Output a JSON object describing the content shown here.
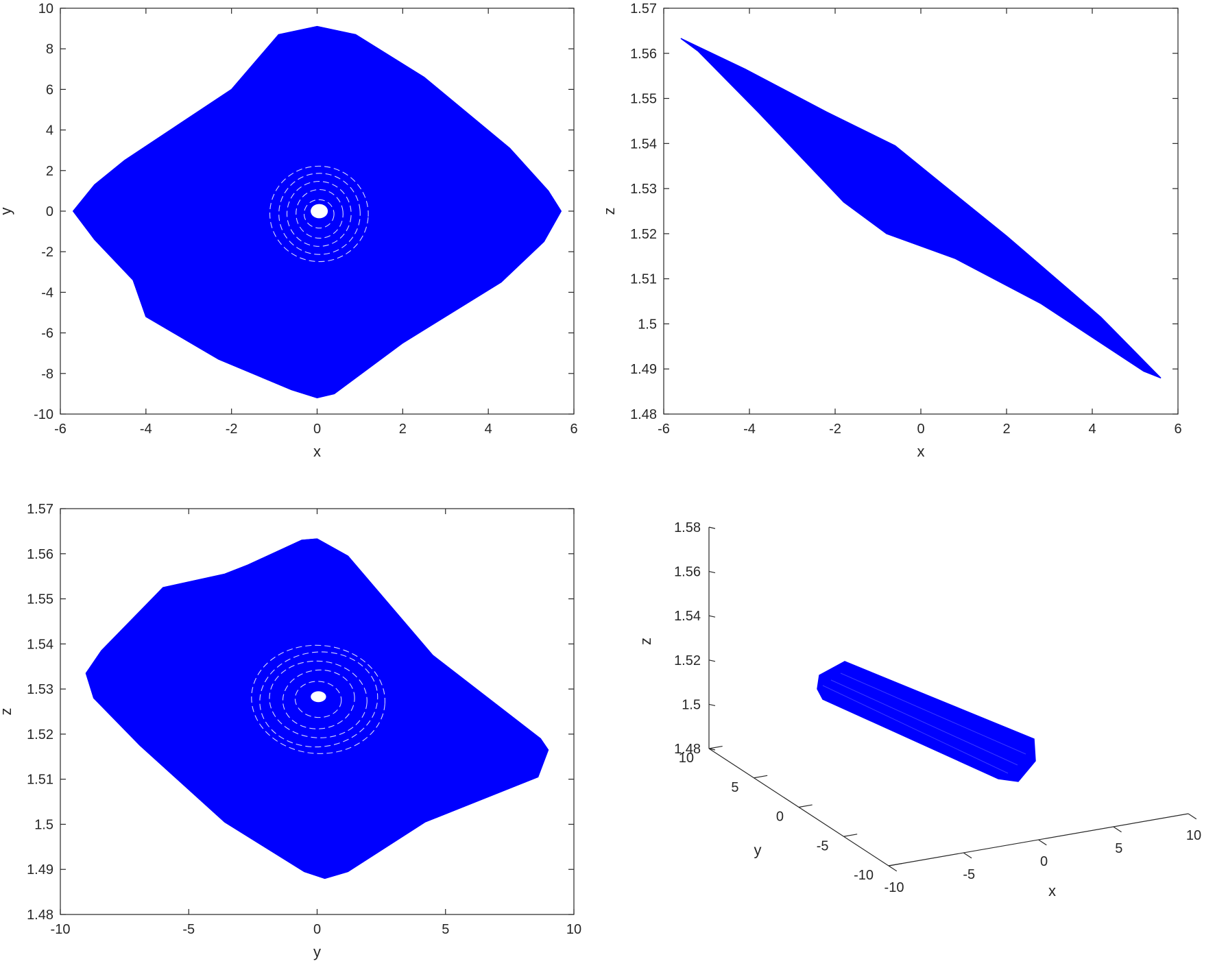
{
  "line_color": "#0000ff",
  "axis_color": "#262626",
  "chart_data": [
    {
      "id": "xy",
      "type": "line",
      "title": "",
      "xlabel": "x",
      "ylabel": "y",
      "xlim": [
        -6,
        6
      ],
      "ylim": [
        -10,
        10
      ],
      "xticks": [
        -6,
        -4,
        -2,
        0,
        2,
        4,
        6
      ],
      "yticks": [
        -10,
        -8,
        -6,
        -4,
        -2,
        0,
        2,
        4,
        6,
        8,
        10
      ],
      "grid": false,
      "series": [
        {
          "outer_boundary": [
            [
              -5.7,
              0
            ],
            [
              -5.2,
              1.3
            ],
            [
              -4.5,
              2.5
            ],
            [
              -2,
              6
            ],
            [
              -0.9,
              8.7
            ],
            [
              0,
              9.1
            ],
            [
              0.9,
              8.7
            ],
            [
              2.5,
              6.6
            ],
            [
              4.5,
              3.1
            ],
            [
              5.4,
              1.0
            ],
            [
              5.7,
              0
            ],
            [
              5.3,
              -1.5
            ],
            [
              4.3,
              -3.5
            ],
            [
              2,
              -6.5
            ],
            [
              0.4,
              -9.0
            ],
            [
              0,
              -9.2
            ],
            [
              -0.6,
              -8.8
            ],
            [
              -2.3,
              -7.3
            ],
            [
              -4,
              -5.2
            ],
            [
              -4.3,
              -3.4
            ],
            [
              -5.2,
              -1.4
            ]
          ],
          "inner_rings_radii": [
            [
              0.35,
              0.7
            ],
            [
              0.55,
              1.2
            ],
            [
              0.75,
              1.6
            ],
            [
              0.95,
              2.0
            ],
            [
              1.15,
              2.35
            ]
          ],
          "central_hole": {
            "x": 0.05,
            "y": 0.0,
            "rx": 0.2,
            "ry": 0.35
          }
        }
      ]
    },
    {
      "id": "xz",
      "type": "line",
      "title": "",
      "xlabel": "x",
      "ylabel": "z",
      "xlim": [
        -6,
        6
      ],
      "ylim": [
        1.48,
        1.57
      ],
      "xticks": [
        -6,
        -4,
        -2,
        0,
        2,
        4,
        6
      ],
      "yticks": [
        1.48,
        1.49,
        1.5,
        1.51,
        1.52,
        1.53,
        1.54,
        1.55,
        1.56,
        1.57
      ],
      "grid": false,
      "series": [
        {
          "outer_boundary": [
            [
              -5.6,
              1.5633
            ],
            [
              -4.1,
              1.5565
            ],
            [
              -2.2,
              1.547
            ],
            [
              -0.6,
              1.5395
            ],
            [
              0.5,
              1.531
            ],
            [
              2.0,
              1.5195
            ],
            [
              4.2,
              1.5015
            ],
            [
              5.6,
              1.488
            ],
            [
              5.2,
              1.4895
            ],
            [
              2.8,
              1.5045
            ],
            [
              0.8,
              1.5145
            ],
            [
              -0.8,
              1.52
            ],
            [
              -1.8,
              1.527
            ],
            [
              -3.8,
              1.547
            ],
            [
              -5.2,
              1.5605
            ]
          ]
        }
      ]
    },
    {
      "id": "yz",
      "type": "line",
      "title": "",
      "xlabel": "y",
      "ylabel": "z",
      "xlim": [
        -10,
        10
      ],
      "ylim": [
        1.48,
        1.57
      ],
      "xticks": [
        -10,
        -5,
        0,
        5,
        10
      ],
      "yticks": [
        1.48,
        1.49,
        1.5,
        1.51,
        1.52,
        1.53,
        1.54,
        1.55,
        1.56,
        1.57
      ],
      "grid": false,
      "series": [
        {
          "outer_boundary": [
            [
              -9.0,
              1.5335
            ],
            [
              -8.4,
              1.5385
            ],
            [
              -6.0,
              1.5525
            ],
            [
              -3.6,
              1.5555
            ],
            [
              -2.7,
              1.5575
            ],
            [
              -0.6,
              1.563
            ],
            [
              0.0,
              1.5633
            ],
            [
              1.2,
              1.5595
            ],
            [
              4.5,
              1.5375
            ],
            [
              8.7,
              1.519
            ],
            [
              9.0,
              1.5165
            ],
            [
              8.6,
              1.5105
            ],
            [
              4.2,
              1.5005
            ],
            [
              1.2,
              1.4895
            ],
            [
              0.3,
              1.488
            ],
            [
              -0.5,
              1.4895
            ],
            [
              -3.6,
              1.5005
            ],
            [
              -6.9,
              1.5175
            ],
            [
              -8.7,
              1.528
            ]
          ],
          "inner_rings_radii": [
            [
              0.9,
              0.004
            ],
            [
              1.4,
              0.0065
            ],
            [
              1.9,
              0.0085
            ],
            [
              2.3,
              0.0105
            ],
            [
              2.6,
              0.012
            ]
          ],
          "central_hole": {
            "x": 0.05,
            "y": 1.5283,
            "rx": 0.3,
            "ry": 0.0012
          }
        }
      ]
    },
    {
      "id": "xyz",
      "type": "line",
      "title": "",
      "xlabel": "x",
      "ylabel": "y",
      "zlabel": "z",
      "xlim": [
        -10,
        10
      ],
      "ylim": [
        -10,
        10
      ],
      "zlim": [
        1.48,
        1.58
      ],
      "xticks": [
        -10,
        -5,
        0,
        5,
        10
      ],
      "yticks": [
        -10,
        -5,
        0,
        5,
        10
      ],
      "zticks": [
        1.48,
        1.5,
        1.52,
        1.54,
        1.56,
        1.58
      ],
      "grid": false,
      "series": [
        {
          "slab_corners_xy_z": {
            "top_left": [
              -5.7,
              0,
              1.5633
            ],
            "bottom_right": [
              5.7,
              0,
              1.488
            ]
          }
        }
      ]
    }
  ]
}
